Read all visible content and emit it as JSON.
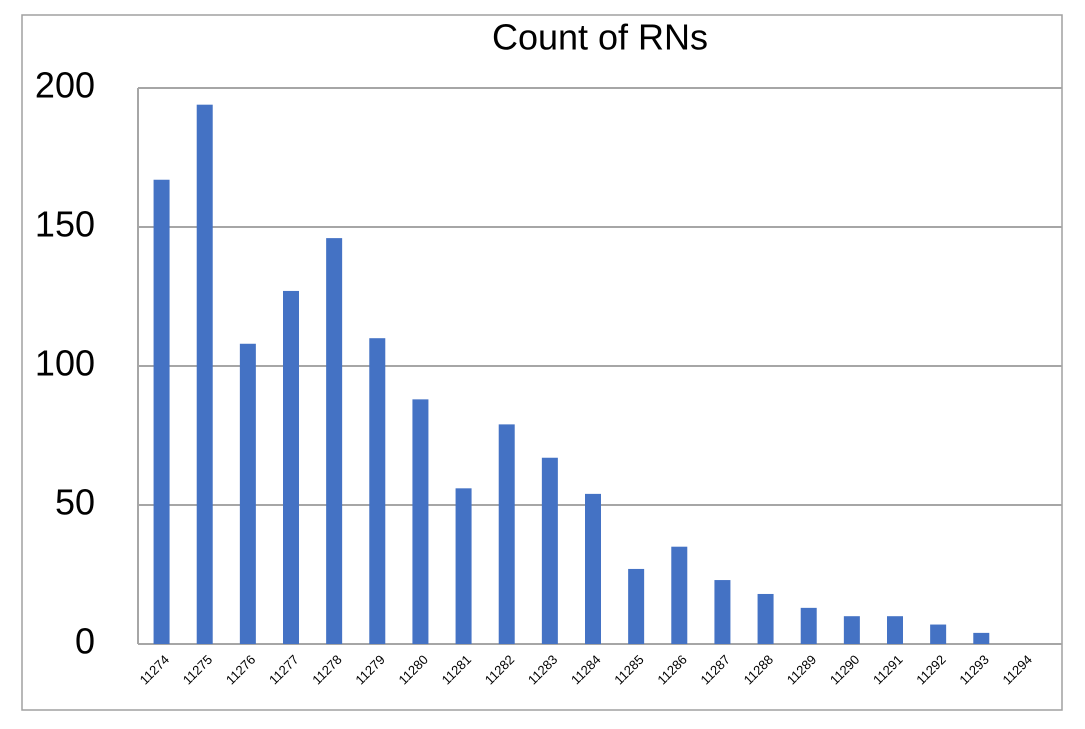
{
  "chart_data": {
    "type": "bar",
    "title": "Count of RNs",
    "categories": [
      "11274",
      "11275",
      "11276",
      "11277",
      "11278",
      "11279",
      "11280",
      "11281",
      "11282",
      "11283",
      "11284",
      "11285",
      "11286",
      "11287",
      "11288",
      "11289",
      "11290",
      "11291",
      "11292",
      "11293",
      "11294"
    ],
    "values": [
      167,
      194,
      108,
      127,
      146,
      110,
      88,
      56,
      79,
      67,
      54,
      27,
      35,
      23,
      18,
      13,
      10,
      10,
      7,
      4,
      0
    ],
    "color": "#4472c4",
    "ylim": [
      0,
      200
    ],
    "yticks": [
      0,
      50,
      100,
      150,
      200
    ],
    "grid": true
  }
}
